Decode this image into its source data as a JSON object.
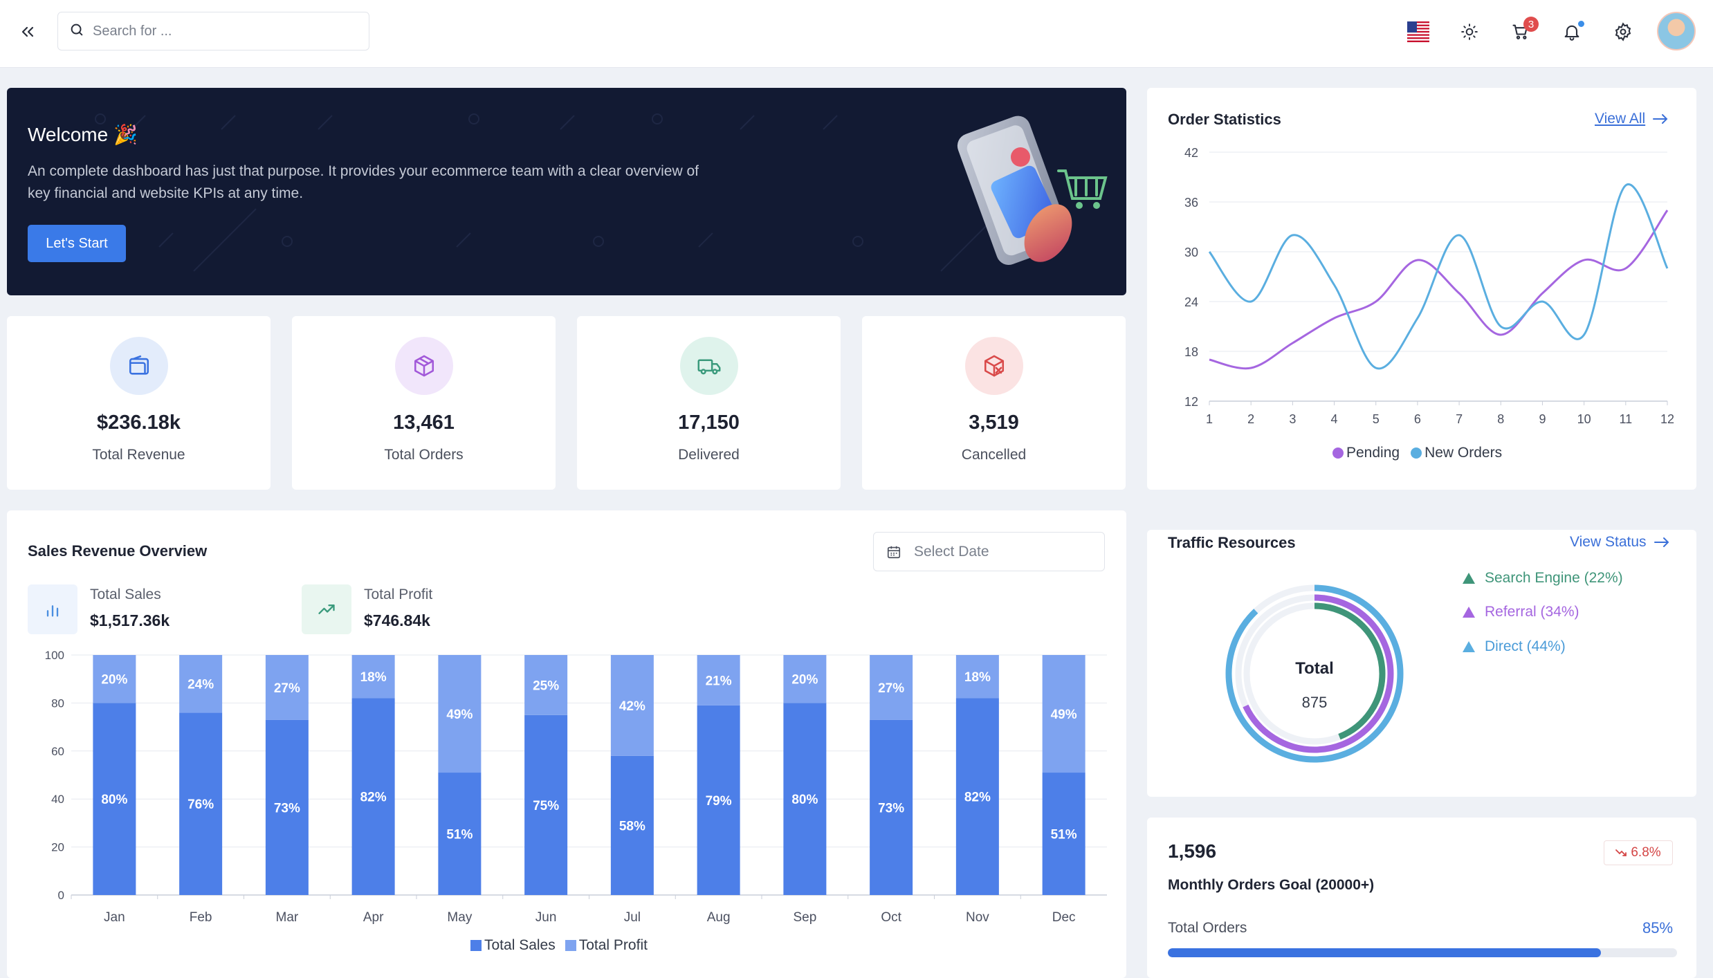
{
  "header": {
    "search_placeholder": "Search for ...",
    "cart_count": "3",
    "icons": [
      "chevrons-left-icon",
      "search-icon",
      "us-flag-icon",
      "sun-icon",
      "cart-icon",
      "bell-icon",
      "gear-icon"
    ]
  },
  "welcome": {
    "title": "Welcome 🎉",
    "text": "An complete dashboard has just that purpose. It provides your ecommerce team with a clear overview of key financial and website KPIs at any time.",
    "button": "Let's Start"
  },
  "stats": [
    {
      "value": "$236.18k",
      "label": "Total Revenue",
      "icon": "wallet-icon",
      "color": "#3a72e0",
      "bg": "#e3ecfb"
    },
    {
      "value": "13,461",
      "label": "Total Orders",
      "icon": "box-icon",
      "color": "#a259d9",
      "bg": "#f1e6fb"
    },
    {
      "value": "17,150",
      "label": "Delivered",
      "icon": "truck-icon",
      "color": "#3a9a7c",
      "bg": "#dff3ec"
    },
    {
      "value": "3,519",
      "label": "Cancelled",
      "icon": "box-cancel-icon",
      "color": "#d94a4a",
      "bg": "#fbe3e3"
    }
  ],
  "order_stats": {
    "title": "Order Statistics",
    "link": "View All",
    "chart_data": {
      "type": "line",
      "x": [
        1,
        2,
        3,
        4,
        5,
        6,
        7,
        8,
        9,
        10,
        11,
        12
      ],
      "ylim": [
        12,
        42
      ],
      "yticks": [
        12,
        18,
        24,
        30,
        36,
        42
      ],
      "series": [
        {
          "name": "Pending",
          "color": "#a566e0",
          "values": [
            17,
            16,
            19,
            22,
            24,
            29,
            25,
            20,
            25,
            29,
            28,
            35
          ]
        },
        {
          "name": "New Orders",
          "color": "#5aaee0",
          "values": [
            30,
            24,
            32,
            26,
            16,
            22,
            32,
            21,
            24,
            20,
            38,
            28
          ]
        }
      ],
      "legend": "bottom"
    }
  },
  "sales": {
    "title": "Sales Revenue Overview",
    "date_placeholder": "Select Date",
    "total_sales_label": "Total Sales",
    "total_sales_value": "$1,517.36k",
    "total_profit_label": "Total Profit",
    "total_profit_value": "$746.84k",
    "chart_data": {
      "type": "bar",
      "stacked": true,
      "categories": [
        "Jan",
        "Feb",
        "Mar",
        "Apr",
        "May",
        "Jun",
        "Jul",
        "Aug",
        "Sep",
        "Oct",
        "Nov",
        "Dec"
      ],
      "ylim": [
        0,
        100
      ],
      "yticks": [
        0,
        20,
        40,
        60,
        80,
        100
      ],
      "series": [
        {
          "name": "Total Sales",
          "color": "#4d7fe8",
          "values": [
            80,
            76,
            73,
            82,
            51,
            75,
            58,
            79,
            80,
            73,
            82,
            51
          ]
        },
        {
          "name": "Total Profit",
          "color": "#7ea3f0",
          "values": [
            20,
            24,
            27,
            18,
            49,
            25,
            42,
            21,
            20,
            27,
            18,
            49
          ]
        }
      ],
      "legend": "bottom"
    }
  },
  "traffic": {
    "title": "Traffic Resources",
    "link": "View Status",
    "center_label": "Total",
    "center_value": "875",
    "items": [
      {
        "label": "Search Engine (22%)",
        "value": 22,
        "color": "#3f9579"
      },
      {
        "label": "Referral (34%)",
        "value": 34,
        "color": "#a566e0"
      },
      {
        "label": "Direct (44%)",
        "value": 44,
        "color": "#5aaee0"
      }
    ]
  },
  "goal": {
    "value": "1,596",
    "change": "6.8%",
    "title": "Monthly Orders Goal (20000+)",
    "label": "Total Orders",
    "percent": "85%",
    "progress": 0.85
  }
}
